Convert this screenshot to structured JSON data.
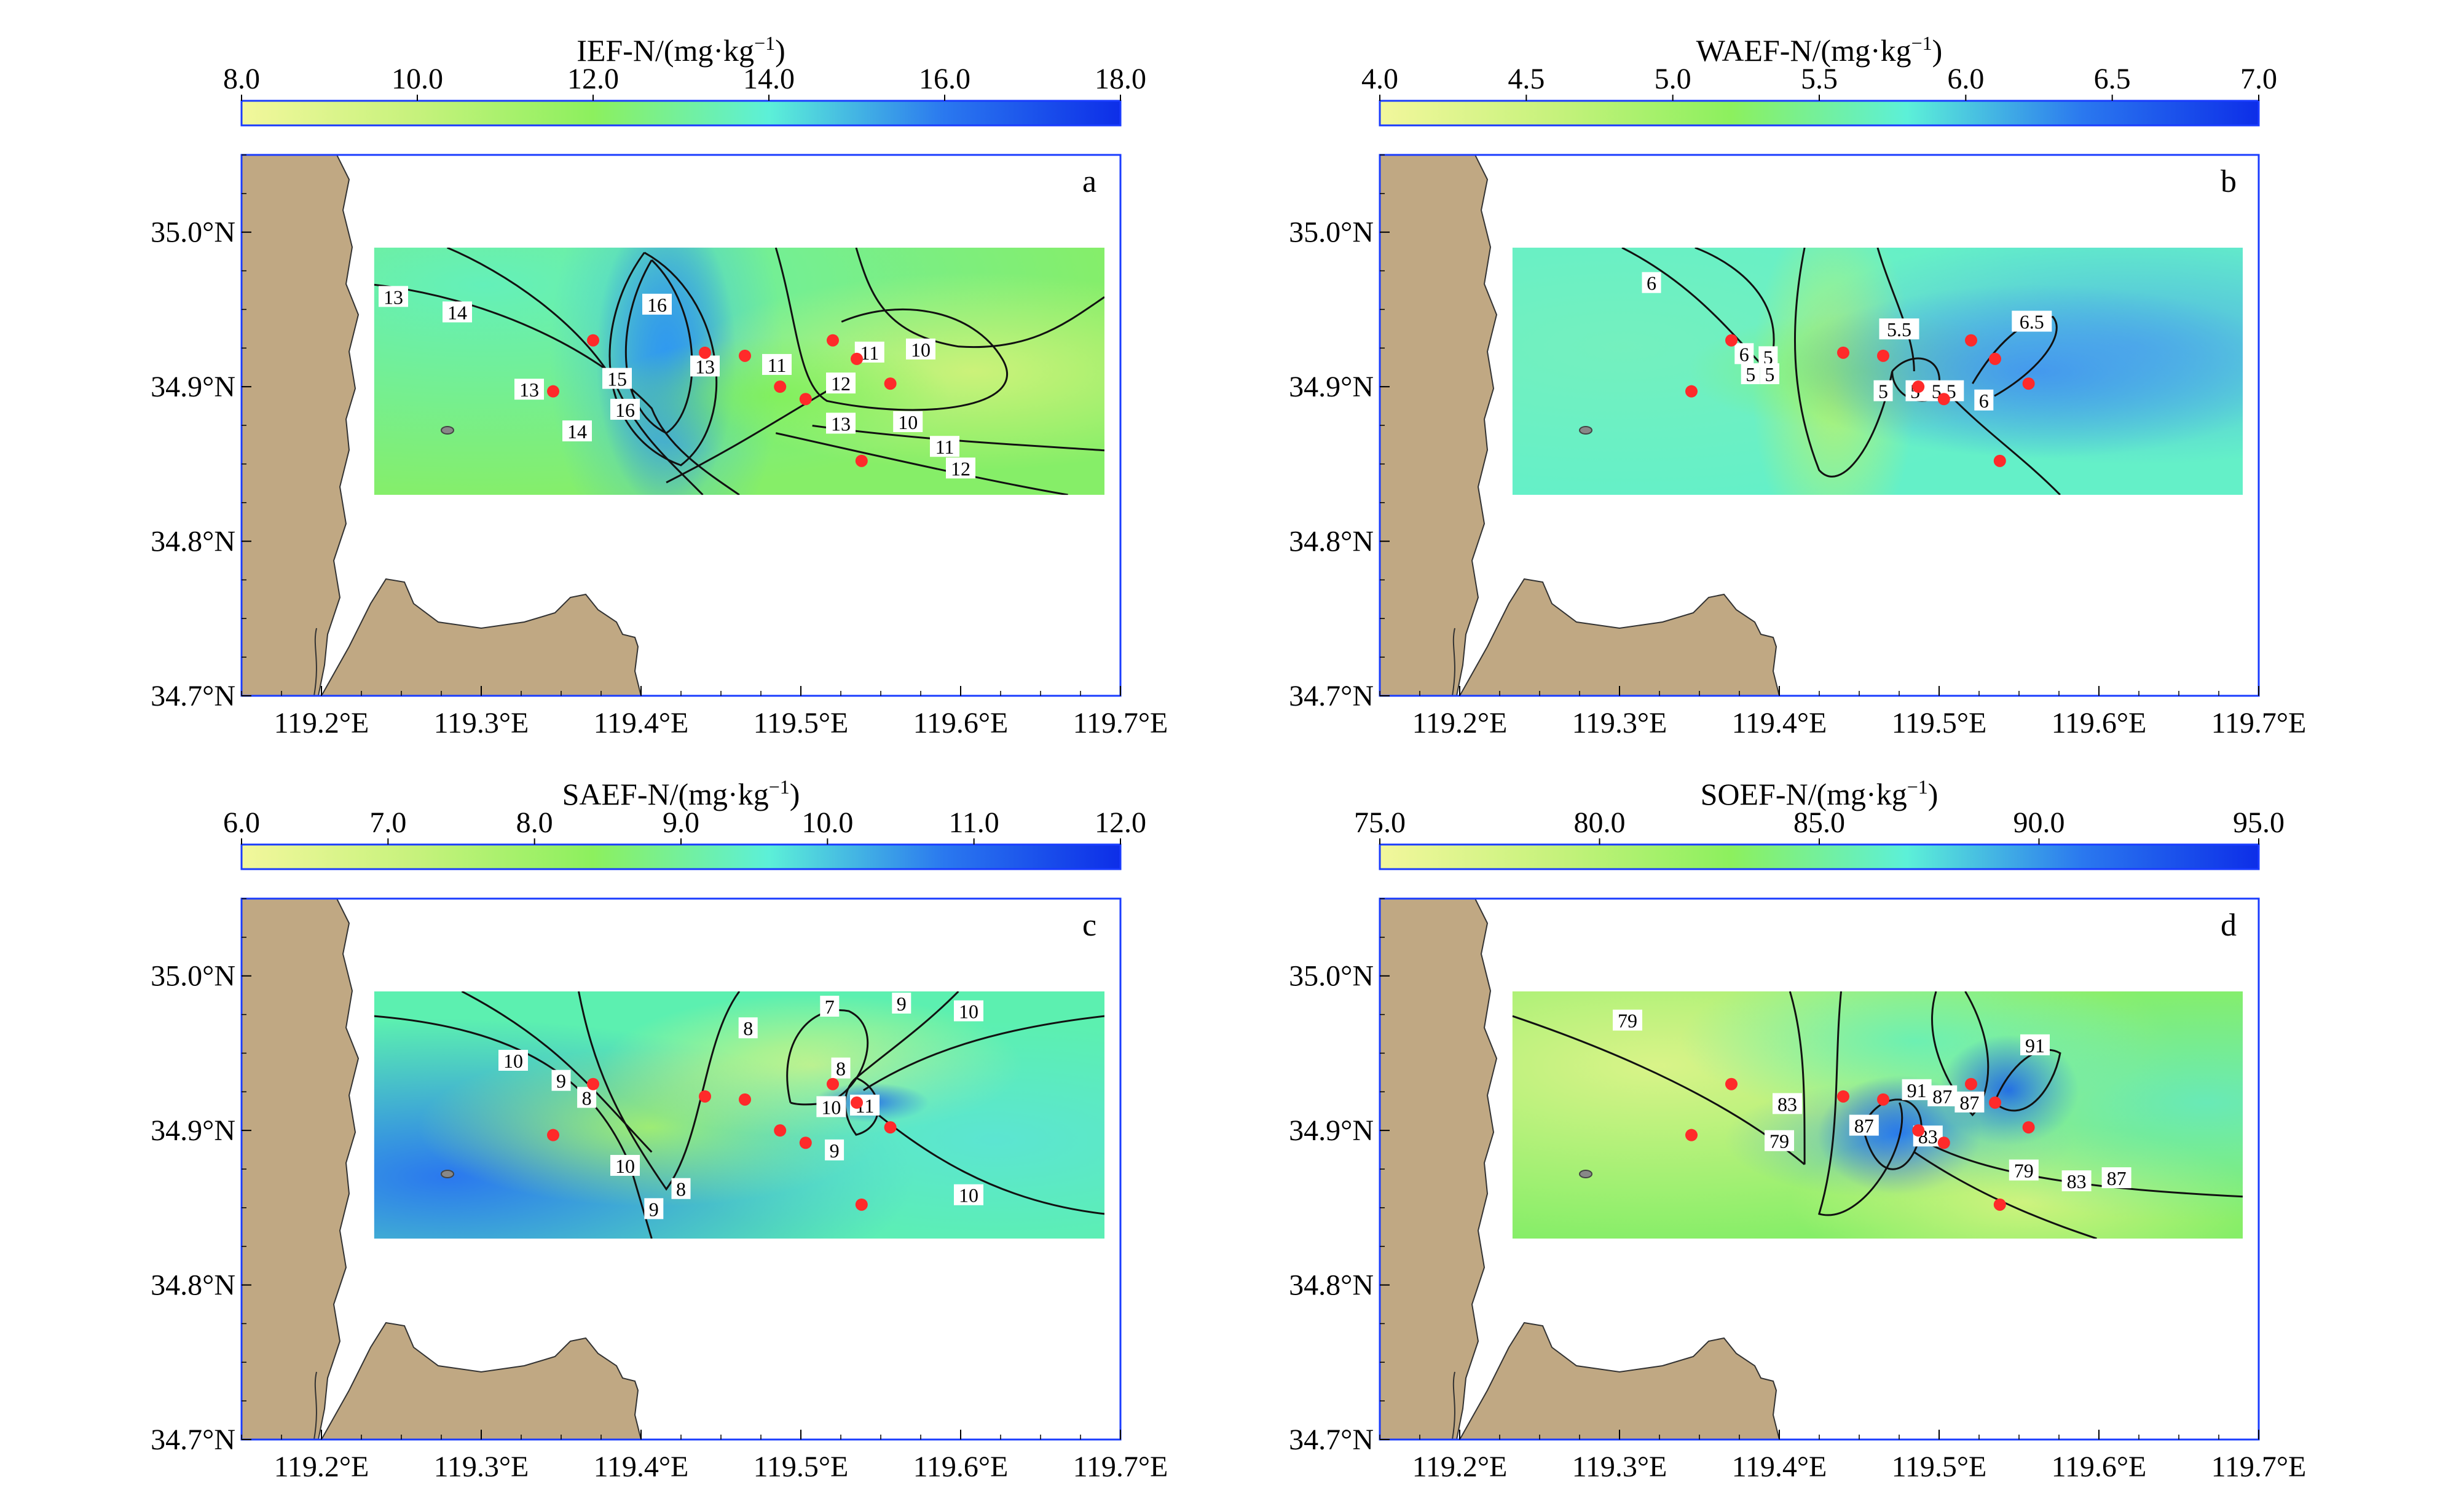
{
  "chart_data": [
    {
      "type": "heatmap",
      "panel_label": "a",
      "title": "IEF-N/(mg·kg",
      "title_sup": "−1",
      "title_close": ")",
      "colorbar_ticks": [
        "8.0",
        "10.0",
        "12.0",
        "14.0",
        "16.0",
        "18.0"
      ],
      "colorbar_range": [
        8,
        18
      ],
      "xlim": [
        119.15,
        119.7
      ],
      "ylim": [
        34.7,
        35.05
      ],
      "x_ticks": [
        "119.2°E",
        "119.3°E",
        "119.4°E",
        "119.5°E",
        "119.6°E",
        "119.7°E"
      ],
      "y_ticks": [
        "34.7°N",
        "34.8°N",
        "34.9°N",
        "35.0°N"
      ],
      "contour_labels": [
        {
          "text": "13",
          "lon": 119.245,
          "lat": 34.958
        },
        {
          "text": "14",
          "lon": 119.285,
          "lat": 34.948
        },
        {
          "text": "16",
          "lon": 119.41,
          "lat": 34.953
        },
        {
          "text": "13",
          "lon": 119.33,
          "lat": 34.898
        },
        {
          "text": "15",
          "lon": 119.385,
          "lat": 34.905
        },
        {
          "text": "16",
          "lon": 119.39,
          "lat": 34.885
        },
        {
          "text": "14",
          "lon": 119.36,
          "lat": 34.871
        },
        {
          "text": "13",
          "lon": 119.44,
          "lat": 34.913
        },
        {
          "text": "11",
          "lon": 119.485,
          "lat": 34.914
        },
        {
          "text": "11",
          "lon": 119.543,
          "lat": 34.922
        },
        {
          "text": "10",
          "lon": 119.575,
          "lat": 34.924
        },
        {
          "text": "12",
          "lon": 119.525,
          "lat": 34.902
        },
        {
          "text": "13",
          "lon": 119.525,
          "lat": 34.876
        },
        {
          "text": "10",
          "lon": 119.567,
          "lat": 34.877
        },
        {
          "text": "11",
          "lon": 119.59,
          "lat": 34.861
        },
        {
          "text": "12",
          "lon": 119.6,
          "lat": 34.847
        }
      ]
    },
    {
      "type": "heatmap",
      "panel_label": "b",
      "title": "WAEF-N/(mg·kg",
      "title_sup": "−1",
      "title_close": ")",
      "colorbar_ticks": [
        "4.0",
        "4.5",
        "5.0",
        "5.5",
        "6.0",
        "6.5",
        "7.0"
      ],
      "colorbar_range": [
        4,
        7
      ],
      "xlim": [
        119.15,
        119.7
      ],
      "ylim": [
        34.7,
        35.05
      ],
      "x_ticks": [
        "119.2°E",
        "119.3°E",
        "119.4°E",
        "119.5°E",
        "119.6°E",
        "119.7°E"
      ],
      "y_ticks": [
        "34.7°N",
        "34.8°N",
        "34.9°N",
        "35.0°N"
      ],
      "contour_labels": [
        {
          "text": "6",
          "lon": 119.32,
          "lat": 34.967
        },
        {
          "text": "6",
          "lon": 119.378,
          "lat": 34.921
        },
        {
          "text": "5",
          "lon": 119.393,
          "lat": 34.919
        },
        {
          "text": "5",
          "lon": 119.382,
          "lat": 34.908
        },
        {
          "text": "5",
          "lon": 119.394,
          "lat": 34.908
        },
        {
          "text": "5.5",
          "lon": 119.475,
          "lat": 34.937
        },
        {
          "text": "5",
          "lon": 119.465,
          "lat": 34.897
        },
        {
          "text": "5",
          "lon": 119.485,
          "lat": 34.897
        },
        {
          "text": "5.5",
          "lon": 119.503,
          "lat": 34.897
        },
        {
          "text": "6",
          "lon": 119.528,
          "lat": 34.891
        },
        {
          "text": "6.5",
          "lon": 119.558,
          "lat": 34.942
        }
      ]
    },
    {
      "type": "heatmap",
      "panel_label": "c",
      "title": "SAEF-N/(mg·kg",
      "title_sup": "−1",
      "title_close": ")",
      "colorbar_ticks": [
        "6.0",
        "7.0",
        "8.0",
        "9.0",
        "10.0",
        "11.0",
        "12.0"
      ],
      "colorbar_range": [
        6,
        12
      ],
      "xlim": [
        119.15,
        119.7
      ],
      "ylim": [
        34.7,
        35.05
      ],
      "x_ticks": [
        "119.2°E",
        "119.3°E",
        "119.4°E",
        "119.5°E",
        "119.6°E",
        "119.7°E"
      ],
      "y_ticks": [
        "34.7°N",
        "34.8°N",
        "34.9°N",
        "35.0°N"
      ],
      "contour_labels": [
        {
          "text": "10",
          "lon": 119.32,
          "lat": 34.945
        },
        {
          "text": "9",
          "lon": 119.35,
          "lat": 34.932
        },
        {
          "text": "8",
          "lon": 119.366,
          "lat": 34.921
        },
        {
          "text": "10",
          "lon": 119.39,
          "lat": 34.877
        },
        {
          "text": "8",
          "lon": 119.425,
          "lat": 34.862
        },
        {
          "text": "9",
          "lon": 119.408,
          "lat": 34.849
        },
        {
          "text": "8",
          "lon": 119.467,
          "lat": 34.966
        },
        {
          "text": "7",
          "lon": 119.518,
          "lat": 34.98
        },
        {
          "text": "9",
          "lon": 119.563,
          "lat": 34.982
        },
        {
          "text": "10",
          "lon": 119.605,
          "lat": 34.977
        },
        {
          "text": "8",
          "lon": 119.525,
          "lat": 34.94
        },
        {
          "text": "10",
          "lon": 119.519,
          "lat": 34.915
        },
        {
          "text": "11",
          "lon": 119.54,
          "lat": 34.916
        },
        {
          "text": "9",
          "lon": 119.521,
          "lat": 34.887
        },
        {
          "text": "10",
          "lon": 119.605,
          "lat": 34.858
        }
      ]
    },
    {
      "type": "heatmap",
      "panel_label": "d",
      "title": "SOEF-N/(mg·kg",
      "title_sup": "−1",
      "title_close": ")",
      "colorbar_ticks": [
        "75.0",
        "80.0",
        "85.0",
        "90.0",
        "95.0"
      ],
      "colorbar_range": [
        75,
        95
      ],
      "xlim": [
        119.15,
        119.7
      ],
      "ylim": [
        34.7,
        35.05
      ],
      "x_ticks": [
        "119.2°E",
        "119.3°E",
        "119.4°E",
        "119.5°E",
        "119.6°E",
        "119.7°E"
      ],
      "y_ticks": [
        "34.7°N",
        "34.8°N",
        "34.9°N",
        "35.0°N"
      ],
      "contour_labels": [
        {
          "text": "79",
          "lon": 119.305,
          "lat": 34.971
        },
        {
          "text": "83",
          "lon": 119.405,
          "lat": 34.917
        },
        {
          "text": "79",
          "lon": 119.4,
          "lat": 34.893
        },
        {
          "text": "87",
          "lon": 119.453,
          "lat": 34.903
        },
        {
          "text": "91",
          "lon": 119.486,
          "lat": 34.926
        },
        {
          "text": "87",
          "lon": 119.502,
          "lat": 34.922
        },
        {
          "text": "87",
          "lon": 119.519,
          "lat": 34.918
        },
        {
          "text": "83",
          "lon": 119.493,
          "lat": 34.896
        },
        {
          "text": "91",
          "lon": 119.56,
          "lat": 34.955
        },
        {
          "text": "79",
          "lon": 119.553,
          "lat": 34.874
        },
        {
          "text": "83",
          "lon": 119.586,
          "lat": 34.867
        },
        {
          "text": "87",
          "lon": 119.611,
          "lat": 34.869
        }
      ]
    }
  ],
  "sampling_sites": [
    {
      "lon": 119.345,
      "lat": 34.897
    },
    {
      "lon": 119.37,
      "lat": 34.93
    },
    {
      "lon": 119.44,
      "lat": 34.922
    },
    {
      "lon": 119.465,
      "lat": 34.92
    },
    {
      "lon": 119.487,
      "lat": 34.9
    },
    {
      "lon": 119.503,
      "lat": 34.892
    },
    {
      "lon": 119.52,
      "lat": 34.93
    },
    {
      "lon": 119.535,
      "lat": 34.918
    },
    {
      "lon": 119.556,
      "lat": 34.902
    },
    {
      "lon": 119.538,
      "lat": 34.852
    }
  ],
  "colors": {
    "colormap": [
      "#f2f79c",
      "#c6f27c",
      "#8cf05e",
      "#5cf0d8",
      "#2a78ef",
      "#0d2ee8"
    ],
    "land": "#c0a883",
    "land_edge": "#333333",
    "site": "#ff2a2a",
    "frame": "#1a3cff",
    "contour": "#111111"
  }
}
